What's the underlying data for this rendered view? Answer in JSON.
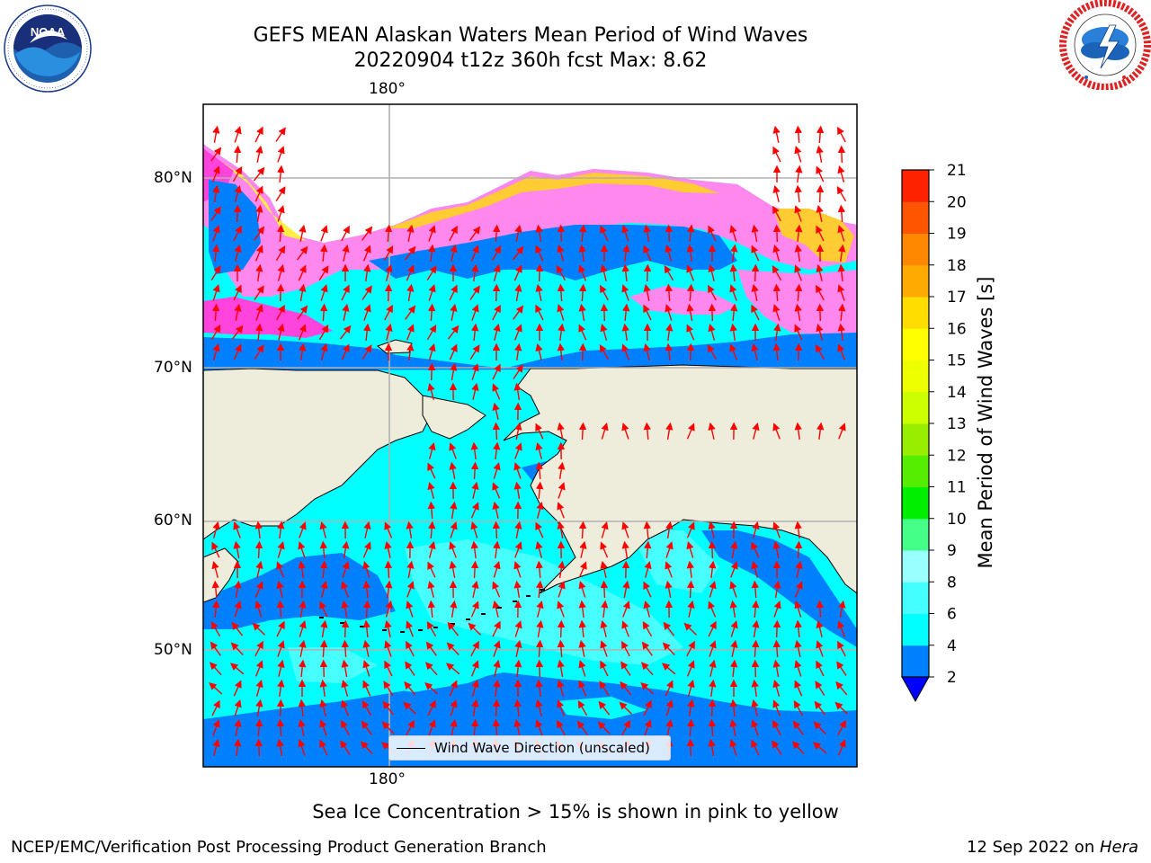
{
  "header": {
    "title_line1": "GEFS MEAN Alaskan Waters Mean Period of Wind Waves",
    "title_line2": "20220904 t12z 360h fcst   Max: 8.62"
  },
  "logos": {
    "noaa": {
      "inner_text": "NOAA",
      "ring_text": "NATIONAL OCEANIC AND ATMOSPHERIC ADMINISTRATION · U.S. DEPARTMENT OF COMMERCE"
    },
    "nws": {
      "ring_text": "NATIONAL WEATHER SERVICE"
    }
  },
  "map": {
    "lon_label_top": "180°",
    "lon_label_bottom": "180°",
    "lat_labels": [
      "80°N",
      "70°N",
      "60°N",
      "50°N"
    ],
    "legend_label": "Wind Wave Direction (unscaled)",
    "colors": {
      "land": "#eeeddc",
      "ice_pink": "#ff88ee",
      "ice_magenta": "#ff44dd",
      "ice_yellow": "#ffee44",
      "ice_orange": "#ffcc33",
      "wave_2_4": "#0080ff",
      "wave_4_6": "#00ffff",
      "wave_6_8": "#66ffff",
      "arrow": "#ff0000"
    }
  },
  "colorbar": {
    "label": "Mean Period of Wind Waves [s]",
    "ticks": [
      "2",
      "4",
      "6",
      "8",
      "9",
      "10",
      "11",
      "12",
      "13",
      "14",
      "15",
      "16",
      "17",
      "18",
      "19",
      "20",
      "21"
    ],
    "colors": [
      "#0080ff",
      "#00ffff",
      "#44ffff",
      "#99ffff",
      "#44ff88",
      "#00ee00",
      "#55ee00",
      "#99ee00",
      "#ccff00",
      "#eeff00",
      "#ffff00",
      "#ffdd00",
      "#ffaa00",
      "#ff8800",
      "#ff5500",
      "#ff2200",
      "#ff0000"
    ],
    "extend_color": "#0000ff"
  },
  "notes": {
    "sea_ice": "Sea Ice Concentration > 15% is shown in pink to yellow"
  },
  "footer": {
    "left": "NCEP/EMC/Verification Post Processing Product Generation Branch",
    "date": "12 Sep 2022 on ",
    "host": "Hera"
  }
}
